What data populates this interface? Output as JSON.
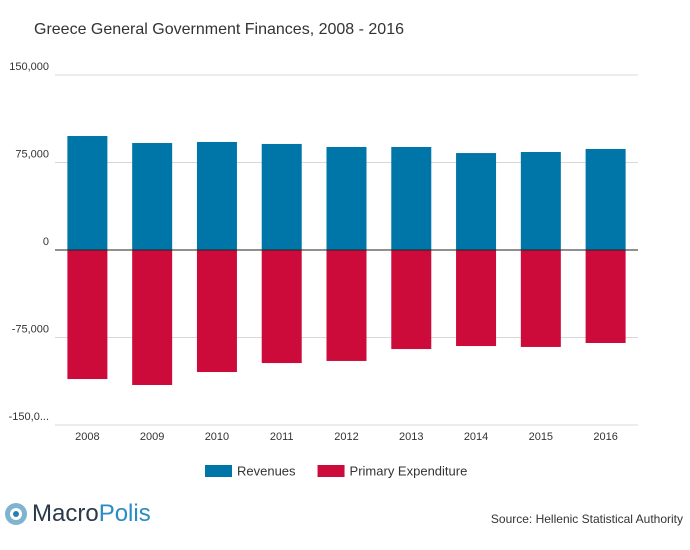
{
  "chart_data": {
    "type": "bar",
    "title": "Greece General Government Finances, 2008 - 2016",
    "categories": [
      "2008",
      "2009",
      "2010",
      "2011",
      "2012",
      "2013",
      "2014",
      "2015",
      "2016"
    ],
    "series": [
      {
        "name": "Revenues",
        "color": "#0075a8",
        "values": [
          97700,
          91700,
          92600,
          90900,
          88300,
          88300,
          83100,
          84000,
          86600
        ]
      },
      {
        "name": "Primary Expenditure",
        "color": "#cc0b3b",
        "values": [
          -110600,
          -115700,
          -104600,
          -96900,
          -95100,
          -84900,
          -82300,
          -83100,
          -79700
        ]
      }
    ],
    "ylim": [
      -150000,
      150000
    ],
    "yticks": [
      {
        "value": 150000,
        "label": "150,000"
      },
      {
        "value": 75000,
        "label": "75,000"
      },
      0,
      {
        "value": -75000,
        "label": "-75,000"
      },
      {
        "value": -150000,
        "label": "-150,0..."
      }
    ],
    "grid": true,
    "legend": "bottom"
  },
  "logo": [
    "Macro",
    "Polis"
  ],
  "source": "Source: Hellenic Statistical Authority"
}
